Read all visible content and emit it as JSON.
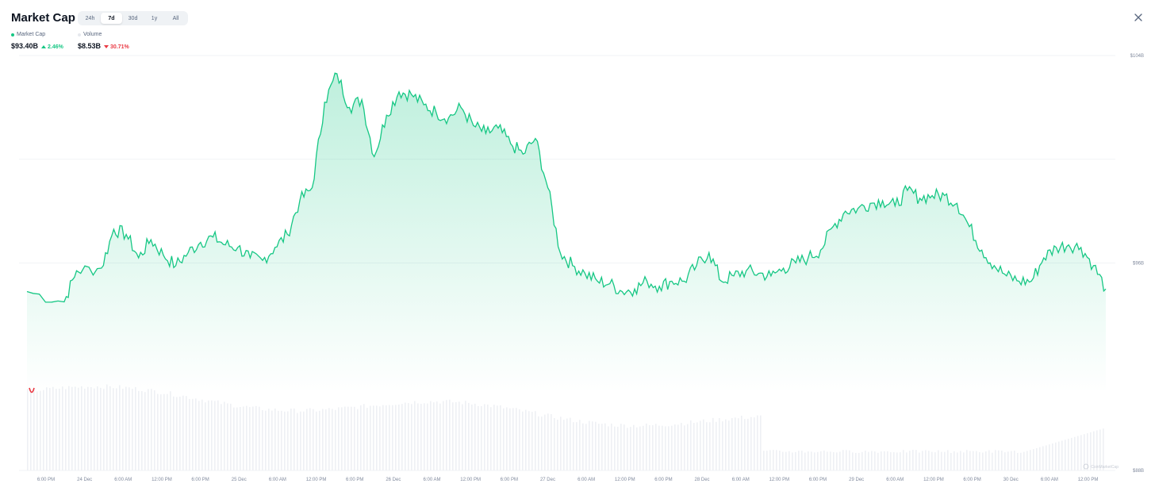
{
  "header": {
    "title": "Market Cap",
    "range_tabs": [
      {
        "label": "24h",
        "active": false
      },
      {
        "label": "7d",
        "active": true
      },
      {
        "label": "30d",
        "active": false
      },
      {
        "label": "1y",
        "active": false
      },
      {
        "label": "All",
        "active": false
      }
    ],
    "close_icon": "close-icon"
  },
  "legend": {
    "market_cap": {
      "label": "Market Cap",
      "color": "#16c784"
    },
    "volume": {
      "label": "Volume",
      "color": "#eff2f5"
    }
  },
  "stats": {
    "market_cap": {
      "value": "$93.40B",
      "change": "2.46%",
      "direction": "up"
    },
    "volume": {
      "value": "$8.53B",
      "change": "30.71%",
      "direction": "down"
    }
  },
  "watermark": "CoinMarketCap",
  "chart_data": {
    "type": "area",
    "title": "Market Cap",
    "y_ticks": [
      {
        "label": "$104B",
        "value": 104
      },
      {
        "label": "$96B",
        "value": 96
      },
      {
        "label": "$88B",
        "value": 88
      }
    ],
    "ylim": [
      88,
      104
    ],
    "x_ticks": [
      "6:00 PM",
      "24 Dec",
      "6:00 AM",
      "12:00 PM",
      "6:00 PM",
      "25 Dec",
      "6:00 AM",
      "12:00 PM",
      "6:00 PM",
      "26 Dec",
      "6:00 AM",
      "12:00 PM",
      "6:00 PM",
      "27 Dec",
      "6:00 AM",
      "12:00 PM",
      "6:00 PM",
      "28 Dec",
      "6:00 AM",
      "12:00 PM",
      "6:00 PM",
      "29 Dec",
      "6:00 AM",
      "12:00 PM",
      "6:00 PM",
      "30 Dec",
      "6:00 AM",
      "12:00 PM"
    ],
    "series": [
      {
        "name": "Market Cap",
        "color": "#16c784",
        "values": [
          {
            "x": 0,
            "y": 94.9
          },
          {
            "x": 3,
            "y": 94.5
          },
          {
            "x": 4,
            "y": 95.7
          },
          {
            "x": 6,
            "y": 95.8
          },
          {
            "x": 7,
            "y": 97.3
          },
          {
            "x": 8,
            "y": 97.1
          },
          {
            "x": 9,
            "y": 96.2
          },
          {
            "x": 10,
            "y": 96.9
          },
          {
            "x": 11,
            "y": 96.3
          },
          {
            "x": 12,
            "y": 95.9
          },
          {
            "x": 13,
            "y": 96.4
          },
          {
            "x": 14,
            "y": 96.8
          },
          {
            "x": 15,
            "y": 97.0
          },
          {
            "x": 16,
            "y": 96.7
          },
          {
            "x": 17,
            "y": 96.6
          },
          {
            "x": 18,
            "y": 96.2
          },
          {
            "x": 19,
            "y": 96.1
          },
          {
            "x": 20,
            "y": 96.6
          },
          {
            "x": 21,
            "y": 97.1
          },
          {
            "x": 22,
            "y": 98.4
          },
          {
            "x": 23,
            "y": 98.9
          },
          {
            "x": 24,
            "y": 102.2
          },
          {
            "x": 25,
            "y": 103.3
          },
          {
            "x": 26,
            "y": 102.0
          },
          {
            "x": 27,
            "y": 102.3
          },
          {
            "x": 28,
            "y": 100.1
          },
          {
            "x": 29,
            "y": 101.7
          },
          {
            "x": 30,
            "y": 102.6
          },
          {
            "x": 31,
            "y": 102.5
          },
          {
            "x": 32,
            "y": 102.1
          },
          {
            "x": 33,
            "y": 101.8
          },
          {
            "x": 34,
            "y": 101.6
          },
          {
            "x": 35,
            "y": 102.0
          },
          {
            "x": 36,
            "y": 101.3
          },
          {
            "x": 37,
            "y": 101.0
          },
          {
            "x": 38,
            "y": 101.2
          },
          {
            "x": 39,
            "y": 100.6
          },
          {
            "x": 40,
            "y": 100.2
          },
          {
            "x": 41,
            "y": 100.8
          },
          {
            "x": 42,
            "y": 98.9
          },
          {
            "x": 43,
            "y": 96.4
          },
          {
            "x": 44,
            "y": 95.9
          },
          {
            "x": 45,
            "y": 95.6
          },
          {
            "x": 46,
            "y": 95.3
          },
          {
            "x": 47,
            "y": 95.2
          },
          {
            "x": 48,
            "y": 94.9
          },
          {
            "x": 49,
            "y": 95.0
          },
          {
            "x": 50,
            "y": 95.3
          },
          {
            "x": 51,
            "y": 95.1
          },
          {
            "x": 52,
            "y": 95.3
          },
          {
            "x": 53,
            "y": 95.3
          },
          {
            "x": 54,
            "y": 95.9
          },
          {
            "x": 55,
            "y": 96.4
          },
          {
            "x": 56,
            "y": 95.3
          },
          {
            "x": 57,
            "y": 95.5
          },
          {
            "x": 58,
            "y": 95.7
          },
          {
            "x": 59,
            "y": 95.6
          },
          {
            "x": 60,
            "y": 95.5
          },
          {
            "x": 61,
            "y": 95.8
          },
          {
            "x": 62,
            "y": 96.0
          },
          {
            "x": 63,
            "y": 96.2
          },
          {
            "x": 64,
            "y": 96.5
          },
          {
            "x": 65,
            "y": 97.4
          },
          {
            "x": 66,
            "y": 98.0
          },
          {
            "x": 67,
            "y": 98.1
          },
          {
            "x": 68,
            "y": 98.3
          },
          {
            "x": 69,
            "y": 98.4
          },
          {
            "x": 70,
            "y": 98.2
          },
          {
            "x": 71,
            "y": 98.8
          },
          {
            "x": 72,
            "y": 98.5
          },
          {
            "x": 73,
            "y": 98.6
          },
          {
            "x": 74,
            "y": 98.6
          },
          {
            "x": 75,
            "y": 98.3
          },
          {
            "x": 76,
            "y": 97.4
          },
          {
            "x": 77,
            "y": 96.5
          },
          {
            "x": 78,
            "y": 95.9
          },
          {
            "x": 79,
            "y": 95.5
          },
          {
            "x": 80,
            "y": 95.3
          },
          {
            "x": 81,
            "y": 95.3
          },
          {
            "x": 82,
            "y": 96.2
          },
          {
            "x": 83,
            "y": 96.6
          },
          {
            "x": 84,
            "y": 96.7
          },
          {
            "x": 85,
            "y": 96.6
          },
          {
            "x": 86,
            "y": 95.9
          },
          {
            "x": 87,
            "y": 95.0
          }
        ]
      }
    ],
    "grid": true,
    "y_axis_position": "right"
  }
}
